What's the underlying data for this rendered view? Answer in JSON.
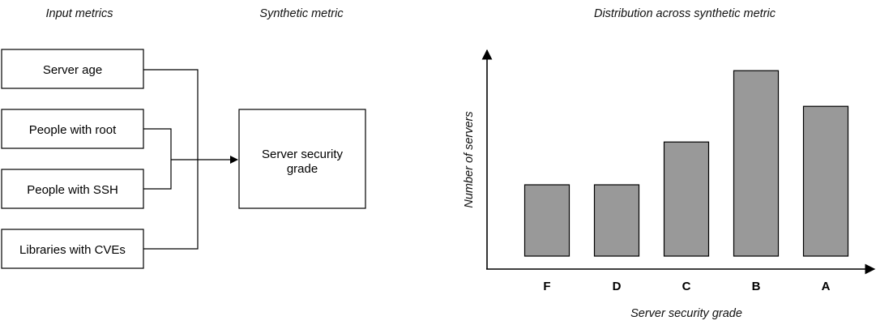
{
  "diagram": {
    "headings": {
      "inputs": "Input metrics",
      "synthetic": "Synthetic metric"
    },
    "inputs": [
      "Server age",
      "People with root",
      "People with SSH",
      "Libraries with CVEs"
    ],
    "output": [
      "Server security",
      "grade"
    ]
  },
  "chart_data": {
    "type": "bar",
    "title": "Distribution across synthetic metric",
    "xlabel": "Server security grade",
    "ylabel": "Number of servers",
    "categories": [
      "F",
      "D",
      "C",
      "B",
      "A"
    ],
    "values": [
      2,
      2,
      3.2,
      5.2,
      4.2
    ],
    "ylim": [
      0,
      5.8
    ],
    "grid": false,
    "bar_color": "#999999"
  }
}
